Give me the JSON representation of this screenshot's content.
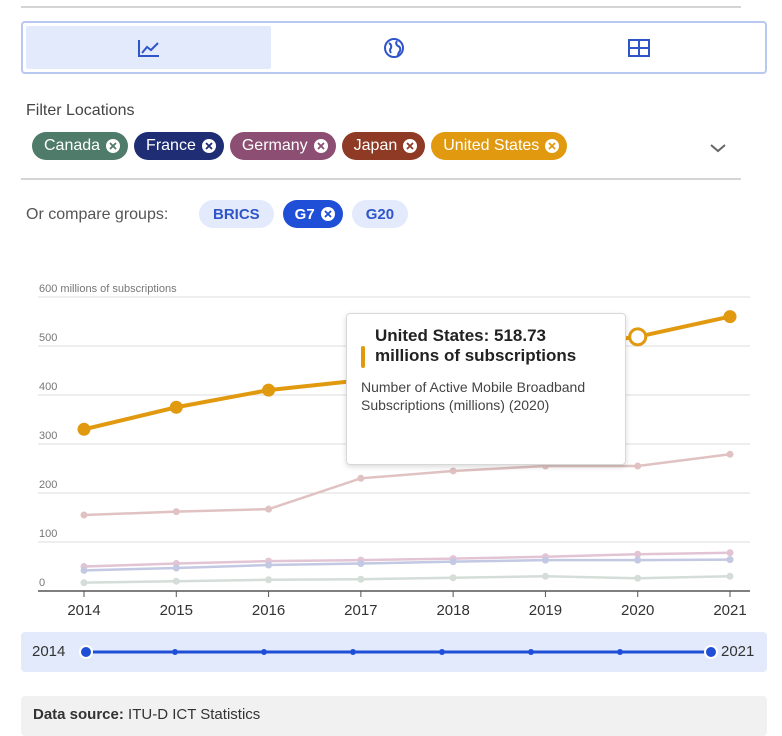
{
  "view_toggle": {
    "options": [
      {
        "icon": "line-chart-icon",
        "active": true
      },
      {
        "icon": "globe-icon",
        "active": false
      },
      {
        "icon": "table-icon",
        "active": false
      }
    ]
  },
  "filters": {
    "title": "Filter Locations",
    "locations": [
      {
        "label": "Canada",
        "color": "#4f7b6a"
      },
      {
        "label": "France",
        "color": "#1f2e74"
      },
      {
        "label": "Germany",
        "color": "#8c4f73"
      },
      {
        "label": "Japan",
        "color": "#8e3a25"
      },
      {
        "label": "United States",
        "color": "#e19a0f"
      }
    ]
  },
  "compare": {
    "label": "Or compare groups:",
    "groups": [
      {
        "label": "BRICS",
        "active": false
      },
      {
        "label": "G7",
        "active": true
      },
      {
        "label": "G20",
        "active": false
      }
    ]
  },
  "chart_data": {
    "type": "line",
    "ylabel": "millions of subscriptions",
    "ylim": [
      0,
      600
    ],
    "yticks": [
      0,
      100,
      200,
      300,
      400,
      500,
      600
    ],
    "x": [
      2014,
      2015,
      2016,
      2017,
      2018,
      2019,
      2020,
      2021
    ],
    "grid": true,
    "series": [
      {
        "name": "United States",
        "color": "#e19a0f",
        "highlight": true,
        "values": [
          330,
          375,
          410,
          430,
          460,
          495,
          518.73,
          560
        ]
      },
      {
        "name": "Japan",
        "color": "#e0c2c2",
        "values": [
          155,
          162,
          167,
          230,
          245,
          255,
          255,
          279
        ]
      },
      {
        "name": "Germany",
        "color": "#e2c4d4",
        "values": [
          50,
          56,
          61,
          63,
          66,
          70,
          75,
          78
        ]
      },
      {
        "name": "France",
        "color": "#c3c8e3",
        "values": [
          42,
          47,
          53,
          56,
          60,
          63,
          63,
          64
        ]
      },
      {
        "name": "Canada",
        "color": "#d5ddd8",
        "values": [
          17,
          20,
          23,
          24,
          27,
          30,
          26,
          30
        ]
      }
    ]
  },
  "tooltip": {
    "title": "United States: 518.73 millions of subscriptions",
    "description": "Number of Active Mobile Broadband Subscriptions (millions) (2020)"
  },
  "timeline": {
    "start": "2014",
    "end": "2021"
  },
  "source": {
    "label": "Data source:",
    "value": "ITU-D ICT Statistics"
  }
}
